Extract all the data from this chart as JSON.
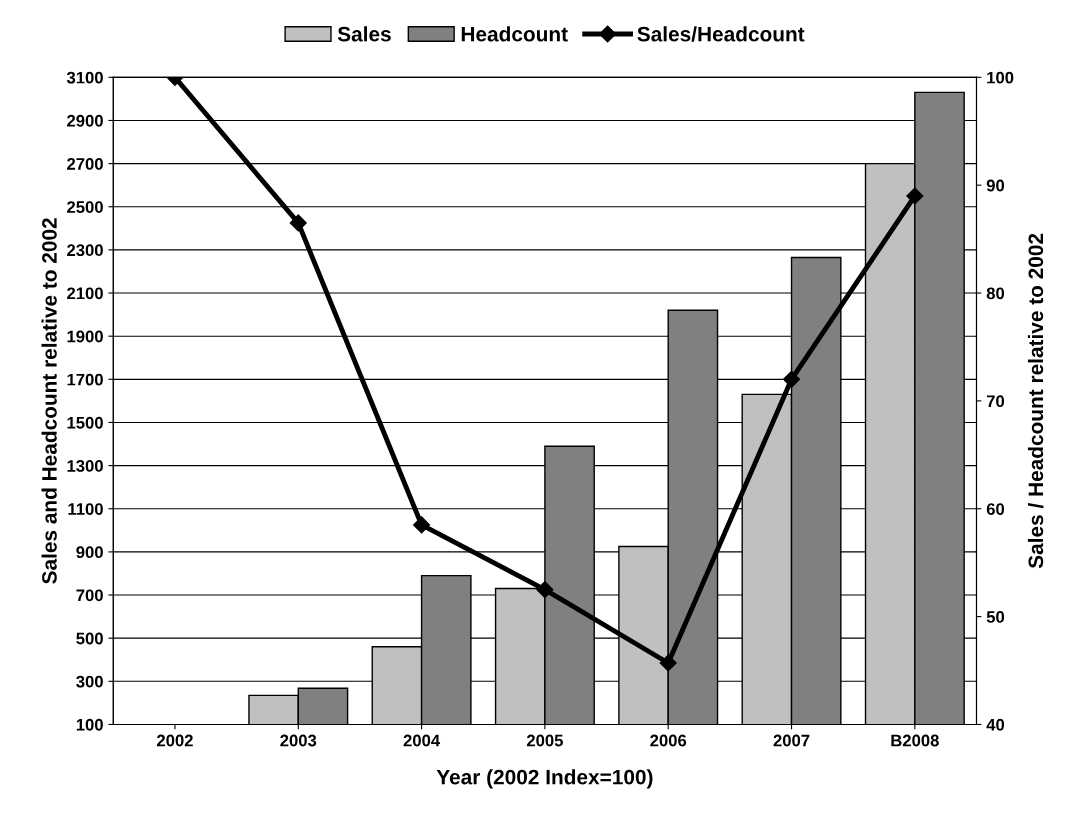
{
  "chart_data": {
    "type": "bar",
    "xlabel": "Year (2002 Index=100)",
    "ylabel": "Sales and Headcount relative to 2002",
    "y2label": "Sales / Headcount relative to 2002",
    "categories": [
      "2002",
      "2003",
      "2004",
      "2005",
      "2006",
      "2007",
      "B2008"
    ],
    "series": [
      {
        "name": "Sales",
        "color": "#c0c0c0",
        "values": [
          null,
          235,
          460,
          730,
          925,
          1630,
          2700
        ]
      },
      {
        "name": "Headcount",
        "color": "#808080",
        "values": [
          null,
          268,
          790,
          1390,
          2020,
          2265,
          3030
        ]
      },
      {
        "name": "Sales/Headcount",
        "type": "line",
        "axis": "y2",
        "color": "#000000",
        "marker": "diamond",
        "values": [
          100,
          86.5,
          58.5,
          52.5,
          45.7,
          72,
          89
        ]
      }
    ],
    "ylim": [
      100,
      3100
    ],
    "yticks": [
      100,
      300,
      500,
      700,
      900,
      1100,
      1300,
      1500,
      1700,
      1900,
      2100,
      2300,
      2500,
      2700,
      2900,
      3100
    ],
    "y2lim": [
      40,
      100
    ],
    "y2ticks": [
      40,
      50,
      60,
      70,
      80,
      90,
      100
    ],
    "grid": "y",
    "legend": "top"
  }
}
